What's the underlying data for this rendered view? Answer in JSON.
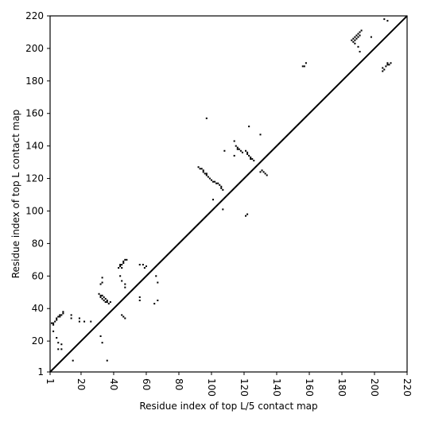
{
  "chart_data": {
    "type": "scatter",
    "title": "",
    "xlabel": "Residue index of top L/5 contact map",
    "ylabel": "Residue index of top L contact map",
    "xlim": [
      1,
      220
    ],
    "ylim": [
      1,
      220
    ],
    "x_ticks": [
      1,
      20,
      40,
      60,
      80,
      100,
      120,
      140,
      160,
      180,
      200,
      220
    ],
    "y_ticks": [
      1,
      20,
      40,
      60,
      80,
      100,
      120,
      140,
      160,
      180,
      200,
      220
    ],
    "grid": false,
    "legend": "none",
    "marker": "square",
    "colors": {
      "points": "#000000",
      "diagonal": "#000000",
      "background": "#ffffff"
    },
    "diagonal": {
      "from": [
        1,
        1
      ],
      "to": [
        220,
        220
      ]
    },
    "series": [
      {
        "name": "",
        "points": [
          [
            2,
            31
          ],
          [
            3,
            30
          ],
          [
            3,
            31
          ],
          [
            4,
            32
          ],
          [
            5,
            33
          ],
          [
            5,
            34
          ],
          [
            6,
            35
          ],
          [
            7,
            35
          ],
          [
            7,
            36
          ],
          [
            8,
            36
          ],
          [
            9,
            37
          ],
          [
            9,
            38
          ],
          [
            3,
            26
          ],
          [
            5,
            22
          ],
          [
            6,
            19
          ],
          [
            6,
            15
          ],
          [
            8,
            15
          ],
          [
            8,
            18
          ],
          [
            15,
            8
          ],
          [
            14,
            34
          ],
          [
            14,
            36
          ],
          [
            19,
            32
          ],
          [
            19,
            34
          ],
          [
            22,
            32
          ],
          [
            26,
            32
          ],
          [
            31,
            49
          ],
          [
            32,
            48
          ],
          [
            32,
            47
          ],
          [
            33,
            48
          ],
          [
            33,
            46
          ],
          [
            34,
            47
          ],
          [
            34,
            45
          ],
          [
            35,
            46
          ],
          [
            35,
            44
          ],
          [
            36,
            45
          ],
          [
            36,
            44
          ],
          [
            37,
            43
          ],
          [
            38,
            44
          ],
          [
            32,
            23
          ],
          [
            33,
            19
          ],
          [
            36,
            8
          ],
          [
            32,
            55
          ],
          [
            33,
            56
          ],
          [
            33,
            59
          ],
          [
            43,
            65
          ],
          [
            44,
            66
          ],
          [
            44,
            67
          ],
          [
            45,
            67
          ],
          [
            46,
            68
          ],
          [
            46,
            69
          ],
          [
            47,
            70
          ],
          [
            48,
            70
          ],
          [
            45,
            65
          ],
          [
            44,
            60
          ],
          [
            45,
            57
          ],
          [
            47,
            55
          ],
          [
            47,
            53
          ],
          [
            45,
            36
          ],
          [
            46,
            35
          ],
          [
            47,
            34
          ],
          [
            56,
            67
          ],
          [
            58,
            67
          ],
          [
            59,
            65
          ],
          [
            60,
            66
          ],
          [
            56,
            47
          ],
          [
            56,
            45
          ],
          [
            65,
            43
          ],
          [
            67,
            45
          ],
          [
            66,
            60
          ],
          [
            67,
            56
          ],
          [
            92,
            127
          ],
          [
            93,
            126
          ],
          [
            94,
            126
          ],
          [
            95,
            125
          ],
          [
            95,
            124
          ],
          [
            96,
            123
          ],
          [
            97,
            123
          ],
          [
            97,
            122
          ],
          [
            98,
            121
          ],
          [
            99,
            120
          ],
          [
            100,
            119
          ],
          [
            101,
            118
          ],
          [
            102,
            118
          ],
          [
            103,
            117
          ],
          [
            104,
            117
          ],
          [
            105,
            116
          ],
          [
            106,
            115
          ],
          [
            106,
            114
          ],
          [
            107,
            113
          ],
          [
            97,
            157
          ],
          [
            101,
            107
          ],
          [
            107,
            101
          ],
          [
            108,
            137
          ],
          [
            114,
            143
          ],
          [
            115,
            140
          ],
          [
            116,
            139
          ],
          [
            116,
            138
          ],
          [
            117,
            138
          ],
          [
            118,
            137
          ],
          [
            119,
            136
          ],
          [
            121,
            137
          ],
          [
            122,
            136
          ],
          [
            122,
            135
          ],
          [
            123,
            134
          ],
          [
            124,
            133
          ],
          [
            124,
            132
          ],
          [
            125,
            132
          ],
          [
            126,
            131
          ],
          [
            114,
            134
          ],
          [
            121,
            97
          ],
          [
            122,
            98
          ],
          [
            123,
            152
          ],
          [
            130,
            147
          ],
          [
            130,
            124
          ],
          [
            131,
            125
          ],
          [
            132,
            124
          ],
          [
            133,
            123
          ],
          [
            134,
            122
          ],
          [
            156,
            189
          ],
          [
            157,
            189
          ],
          [
            158,
            191
          ],
          [
            186,
            205
          ],
          [
            187,
            206
          ],
          [
            187,
            204
          ],
          [
            188,
            205
          ],
          [
            188,
            207
          ],
          [
            189,
            206
          ],
          [
            189,
            208
          ],
          [
            190,
            207
          ],
          [
            190,
            209
          ],
          [
            191,
            208
          ],
          [
            191,
            210
          ],
          [
            192,
            211
          ],
          [
            188,
            203
          ],
          [
            190,
            201
          ],
          [
            191,
            198
          ],
          [
            198,
            207
          ],
          [
            205,
            186
          ],
          [
            205,
            188
          ],
          [
            206,
            187
          ],
          [
            207,
            189
          ],
          [
            208,
            190
          ],
          [
            208,
            191
          ],
          [
            209,
            190
          ],
          [
            210,
            191
          ],
          [
            206,
            218
          ],
          [
            208,
            217
          ]
        ]
      }
    ]
  }
}
